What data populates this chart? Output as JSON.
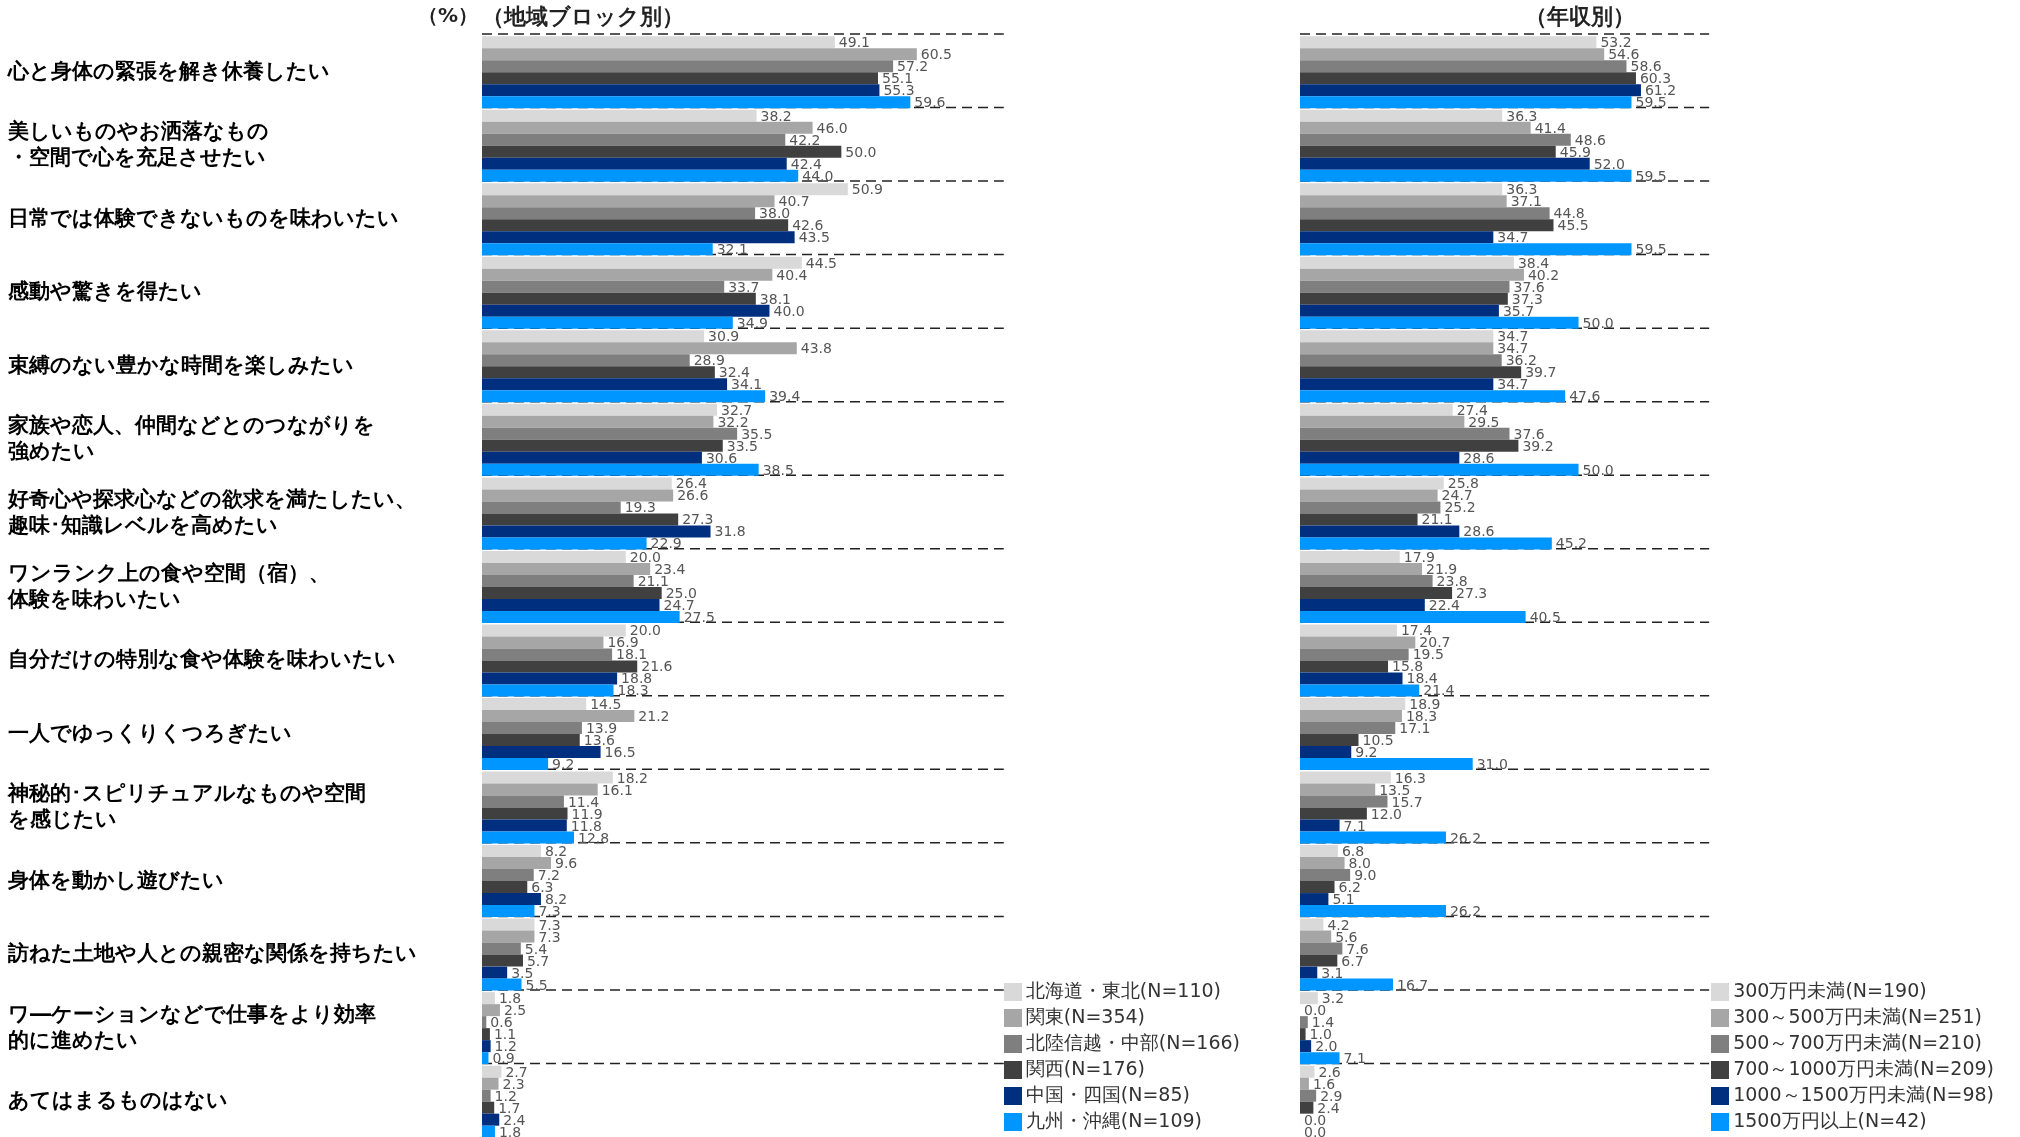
{
  "chart_data": [
    {
      "type": "bar",
      "orientation": "horizontal",
      "title": "（地域ブロック別）",
      "annotations": [
        "（%）"
      ],
      "categories": [
        "心と身体の緊張を解き休養したい",
        "美しいものやお洒落なもの・空間で心を充足させたい",
        "日常では体験できないものを味わいたい",
        "感動や驚きを得たい",
        "束縛のない豊かな時間を楽しみたい",
        "家族や恋人、仲間などとのつながりを強めたい",
        "好奇心や探求心などの欲求を満たしたい、趣味･知識レベルを高めたい",
        "ワンランク上の食や空間（宿）、体験を味わいたい",
        "自分だけの特別な食や体験を味わいたい",
        "一人でゆっくりくつろぎたい",
        "神秘的･スピリチュアルなものや空間を感じたい",
        "身体を動かし遊びたい",
        "訪ねた土地や人との親密な関係を持ちたい",
        "ワ―ケーションなどで仕事をより効率的に進めたい",
        "あてはまるものはない"
      ],
      "series": [
        {
          "name": "北海道・東北(N=110)",
          "color": "#d9d9d9",
          "values": [
            49.1,
            38.2,
            50.9,
            44.5,
            30.9,
            32.7,
            26.4,
            20.0,
            20.0,
            14.5,
            18.2,
            8.2,
            7.3,
            1.8,
            2.7
          ],
          "value_labels": [
            "49.1",
            "38.2",
            "50.9",
            "44.5",
            "30.9",
            "32.7",
            "26.4",
            "20.0",
            "20.0",
            "14.5",
            "18.2",
            "8.2",
            "7.3",
            "1.8",
            "2.7"
          ]
        },
        {
          "name": "関東(N=354)",
          "color": "#a6a6a6",
          "values": [
            60.5,
            46.0,
            40.7,
            40.4,
            43.8,
            32.2,
            26.6,
            23.4,
            16.9,
            21.2,
            16.1,
            9.6,
            7.3,
            2.5,
            2.3
          ],
          "value_labels": [
            "60.5",
            "46.0",
            "40.7",
            "40.4",
            "43.8",
            "32.2",
            "26.6",
            "23.4",
            "16.9",
            "21.2",
            "16.1",
            "9.6",
            "7.3",
            "2.5",
            "2.3"
          ]
        },
        {
          "name": "北陸信越・中部(N=166)",
          "color": "#7f7f7f",
          "values": [
            57.2,
            42.2,
            38.0,
            33.7,
            28.9,
            35.5,
            19.3,
            21.1,
            18.1,
            13.9,
            11.4,
            7.2,
            5.4,
            0.6,
            1.2
          ],
          "value_labels": [
            "57.2",
            "42.2",
            "38.0",
            "33.7",
            "28.9",
            "35.5",
            "19.3",
            "21.1",
            "18.1",
            "13.9",
            "11.4",
            "7.2",
            "5.4",
            "0.6",
            "1.2"
          ]
        },
        {
          "name": "関西(N=176)",
          "color": "#404040",
          "values": [
            55.1,
            50.0,
            42.6,
            38.1,
            32.4,
            33.5,
            27.3,
            25.0,
            21.6,
            13.6,
            11.9,
            6.3,
            5.7,
            1.1,
            1.7
          ],
          "value_labels": [
            "55.1",
            "50.0",
            "42.6",
            "38.1",
            "32.4",
            "33.5",
            "27.3",
            "25.0",
            "21.6",
            "13.6",
            "11.9",
            "6.3",
            "5.7",
            "1.1",
            "1.7"
          ]
        },
        {
          "name": "中国・四国(N=85)",
          "color": "#002f7f",
          "values": [
            55.3,
            42.4,
            43.5,
            40.0,
            34.1,
            30.6,
            31.8,
            24.7,
            18.8,
            16.5,
            11.8,
            8.2,
            3.5,
            1.2,
            2.4
          ],
          "value_labels": [
            "55.3",
            "42.4",
            "43.5",
            "40.0",
            "34.1",
            "30.6",
            "31.8",
            "24.7",
            "18.8",
            "16.5",
            "11.8",
            "8.2",
            "3.5",
            "1.2",
            "2.4"
          ]
        },
        {
          "name": "九州・沖縄(N=109)",
          "color": "#0096ff",
          "values": [
            59.6,
            44.0,
            32.1,
            34.9,
            39.4,
            38.5,
            22.9,
            27.5,
            18.3,
            9.2,
            12.8,
            7.3,
            5.5,
            0.9,
            1.8
          ],
          "value_labels": [
            "59.6",
            "44.0",
            "32.1",
            "34.9",
            "39.4",
            "38.5",
            "22.9",
            "27.5",
            "18.3",
            "9.2",
            "12.8",
            "7.3",
            "5.5",
            "0.9",
            "1.8"
          ]
        }
      ],
      "grid": "y",
      "legend": "bottom right",
      "tick_labels": "y"
    },
    {
      "type": "bar",
      "orientation": "horizontal",
      "title": "（年収別）",
      "categories": [
        null,
        null,
        null,
        null,
        null,
        null,
        null,
        null,
        null,
        null,
        null,
        null,
        null,
        null,
        null
      ],
      "series": [
        {
          "name": "300万円未満(N=190)",
          "color": "#d9d9d9",
          "values": [
            53.2,
            36.3,
            36.3,
            38.4,
            34.7,
            27.4,
            25.8,
            17.9,
            17.4,
            18.9,
            16.3,
            6.8,
            4.2,
            3.2,
            2.6
          ],
          "value_labels": [
            "53.2",
            "36.3",
            "36.3",
            "38.4",
            "34.7",
            "27.4",
            "25.8",
            "17.9",
            "17.4",
            "18.9",
            "16.3",
            "6.8",
            "4.2",
            "3.2",
            "2.6"
          ]
        },
        {
          "name": "300～500万円未満(N=251)",
          "color": "#a6a6a6",
          "values": [
            54.6,
            41.4,
            37.1,
            40.2,
            34.7,
            29.5,
            24.7,
            21.9,
            20.7,
            18.3,
            13.5,
            8.0,
            5.6,
            0.0,
            1.6
          ],
          "value_labels": [
            "54.6",
            "41.4",
            "37.1",
            "40.2",
            "34.7",
            "29.5",
            "24.7",
            "21.9",
            "20.7",
            "18.3",
            "13.5",
            "8.0",
            "5.6",
            "0.0",
            "1.6"
          ]
        },
        {
          "name": "500～700万円未満(N=210)",
          "color": "#7f7f7f",
          "values": [
            58.6,
            48.6,
            44.8,
            37.6,
            36.2,
            37.6,
            25.2,
            23.8,
            19.5,
            17.1,
            15.7,
            9.0,
            7.6,
            1.4,
            2.9
          ],
          "value_labels": [
            "58.6",
            "48.6",
            "44.8",
            "37.6",
            "36.2",
            "37.6",
            "25.2",
            "23.8",
            "19.5",
            "17.1",
            "15.7",
            "9.0",
            "7.6",
            "1.4",
            "2.9"
          ]
        },
        {
          "name": "700～1000万円未満(N=209)",
          "color": "#404040",
          "values": [
            60.3,
            45.9,
            45.5,
            37.3,
            39.7,
            39.2,
            21.1,
            27.3,
            15.8,
            10.5,
            12.0,
            6.2,
            6.7,
            1.0,
            2.4
          ],
          "value_labels": [
            "60.3",
            "45.9",
            "45.5",
            "37.3",
            "39.7",
            "39.2",
            "21.1",
            "27.3",
            "15.8",
            "10.5",
            "12.0",
            "6.2",
            "6.7",
            "1.0",
            "2.4"
          ]
        },
        {
          "name": "1000～1500万円未満(N=98)",
          "color": "#002f7f",
          "values": [
            61.2,
            52.0,
            34.7,
            35.7,
            34.7,
            28.6,
            28.6,
            22.4,
            18.4,
            9.2,
            7.1,
            5.1,
            3.1,
            2.0,
            0.0
          ],
          "value_labels": [
            "61.2",
            "52.0",
            "34.7",
            "35.7",
            "34.7",
            "28.6",
            "28.6",
            "22.4",
            "18.4",
            "9.2",
            "7.1",
            "5.1",
            "3.1",
            "2.0",
            "0.0"
          ]
        },
        {
          "name": "1500万円以上(N=42)",
          "color": "#0096ff",
          "values": [
            59.5,
            59.5,
            59.5,
            50.0,
            47.6,
            50.0,
            45.2,
            40.5,
            21.4,
            31.0,
            26.2,
            26.2,
            16.7,
            7.1,
            0.0
          ],
          "value_labels": [
            "59.5",
            "59.5",
            "59.5",
            "50.0",
            "47.6",
            "50.0",
            "45.2",
            "40.5",
            "21.4",
            "31.0",
            "26.2",
            "26.2",
            "16.7",
            "7.1",
            "0.0"
          ]
        }
      ],
      "grid": "y",
      "legend": "bottom right",
      "tick_labels": false
    }
  ]
}
